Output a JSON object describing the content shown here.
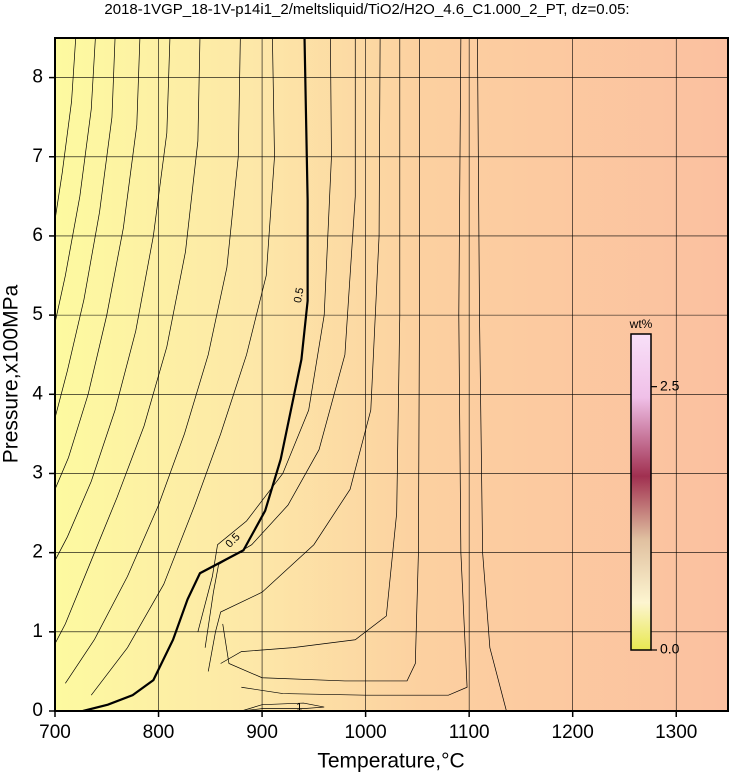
{
  "chart_data": {
    "type": "contour",
    "title": "2018-1VGP_18-1V-p14i1_2/meltsliquid/TiO2/H2O_4.6_C1.000_2_PT, dz=0.05:",
    "x_label": "Temperature,°C",
    "y_label": "Pressure,x100MPa",
    "xlim": [
      700,
      1350
    ],
    "ylim": [
      0,
      8.5
    ],
    "xticks": [
      700,
      800,
      900,
      1000,
      1100,
      1200,
      1300
    ],
    "yticks": [
      0,
      1,
      2,
      3,
      4,
      5,
      6,
      7,
      8
    ],
    "grid": true,
    "colorbar": {
      "label": "wt%",
      "lim": [
        0,
        3.0
      ],
      "ticks": [
        {
          "value": 0,
          "label": "0.0"
        },
        2.5
      ]
    },
    "contours": [
      {
        "x": [
          941,
          944,
          944,
          938,
          928,
          918,
          903,
          882,
          840,
          828,
          814,
          795,
          775,
          751,
          727
        ],
        "y": [
          8.5,
          6.45,
          5.18,
          4.44,
          3.81,
          3.18,
          2.53,
          2.03,
          1.74,
          1.41,
          0.9,
          0.39,
          0.2,
          0.08,
          0
        ],
        "width": 2.2
      },
      {
        "x": [
          1052,
          1052,
          1051,
          1048,
          1040,
          980,
          900,
          868,
          862
        ],
        "y": [
          8.5,
          5,
          2,
          0.6,
          0.38,
          0.38,
          0.42,
          0.6,
          1.1
        ],
        "width": 0.7
      },
      {
        "x": [
          1092,
          1090,
          1092,
          1098,
          1080,
          1000,
          920,
          880
        ],
        "y": [
          8.5,
          5,
          2,
          0.3,
          0.2,
          0.2,
          0.22,
          0.3
        ],
        "width": 0.7
      },
      {
        "x": [
          1108,
          1110,
          1113,
          1120,
          1130,
          1136
        ],
        "y": [
          8.5,
          5,
          2,
          0.8,
          0.3,
          0
        ],
        "width": 0.7
      },
      {
        "x": [
          1033,
          1033,
          1030,
          1020,
          990,
          930,
          880,
          860
        ],
        "y": [
          8.5,
          5,
          2.5,
          1.2,
          0.9,
          0.8,
          0.75,
          0.6
        ],
        "width": 0.7
      },
      {
        "x": [
          1014,
          1013,
          1005,
          985,
          950,
          900,
          860,
          855,
          848
        ],
        "y": [
          8.5,
          6,
          3.8,
          2.8,
          2.1,
          1.5,
          1.25,
          1.0,
          0.5
        ],
        "width": 0.7
      },
      {
        "x": [
          990,
          990,
          980,
          955,
          925,
          890,
          858,
          853,
          845
        ],
        "y": [
          8.5,
          6.5,
          4.5,
          3.3,
          2.6,
          2.1,
          1.85,
          1.5,
          0.8
        ],
        "width": 0.7
      },
      {
        "x": [
          966,
          967,
          960,
          945,
          920,
          885,
          857,
          852,
          838
        ],
        "y": [
          8.5,
          7,
          5,
          3.8,
          3.0,
          2.4,
          2.1,
          1.7,
          1.0
        ],
        "width": 0.7
      },
      {
        "x": [
          910,
          912,
          904,
          885,
          860,
          835,
          805,
          770,
          735
        ],
        "y": [
          8.5,
          7,
          5.5,
          4.5,
          3.5,
          2.6,
          1.6,
          0.8,
          0.2
        ],
        "width": 0.7
      },
      {
        "x": [
          879,
          877,
          866,
          848,
          825,
          800,
          770,
          738,
          710
        ],
        "y": [
          8.5,
          7,
          5.6,
          4.5,
          3.5,
          2.6,
          1.7,
          0.9,
          0.35
        ],
        "width": 0.7
      },
      {
        "x": [
          840,
          838,
          826,
          808,
          786,
          760,
          735,
          710,
          700
        ],
        "y": [
          8.5,
          7.2,
          5.8,
          4.6,
          3.6,
          2.7,
          1.9,
          1.1,
          0.85
        ],
        "width": 0.7
      },
      {
        "x": [
          811,
          808,
          795,
          778,
          758,
          735,
          712,
          700
        ],
        "y": [
          8.5,
          7.3,
          6,
          4.8,
          3.8,
          2.9,
          2.2,
          1.9
        ],
        "width": 0.7
      },
      {
        "x": [
          782,
          779,
          766,
          750,
          732,
          713,
          700
        ],
        "y": [
          8.5,
          7.4,
          6.1,
          5.0,
          4.0,
          3.2,
          2.8
        ],
        "width": 0.7
      },
      {
        "x": [
          758,
          755,
          743,
          728,
          712,
          700
        ],
        "y": [
          8.5,
          7.5,
          6.3,
          5.2,
          4.3,
          3.7
        ],
        "width": 0.7
      },
      {
        "x": [
          739,
          735,
          724,
          710,
          700
        ],
        "y": [
          8.5,
          7.6,
          6.5,
          5.5,
          4.9
        ],
        "width": 0.7
      },
      {
        "x": [
          720,
          716,
          707,
          700
        ],
        "y": [
          8.5,
          7.7,
          6.8,
          6.2
        ],
        "width": 0.7
      },
      {
        "x": [
          880,
          900,
          940,
          960,
          940,
          900,
          880
        ],
        "y": [
          0,
          0.08,
          0.1,
          0.05,
          0.03,
          0.03,
          0
        ],
        "width": 0.7
      }
    ],
    "contour_labels": [
      {
        "text": "0.5",
        "x": 936,
        "y": 5.25,
        "angle": -80
      },
      {
        "text": "0.5",
        "x": 872,
        "y": 2.15,
        "angle": -45
      },
      {
        "text": "1",
        "x": 936,
        "y": 0.04,
        "angle": 0
      }
    ]
  }
}
